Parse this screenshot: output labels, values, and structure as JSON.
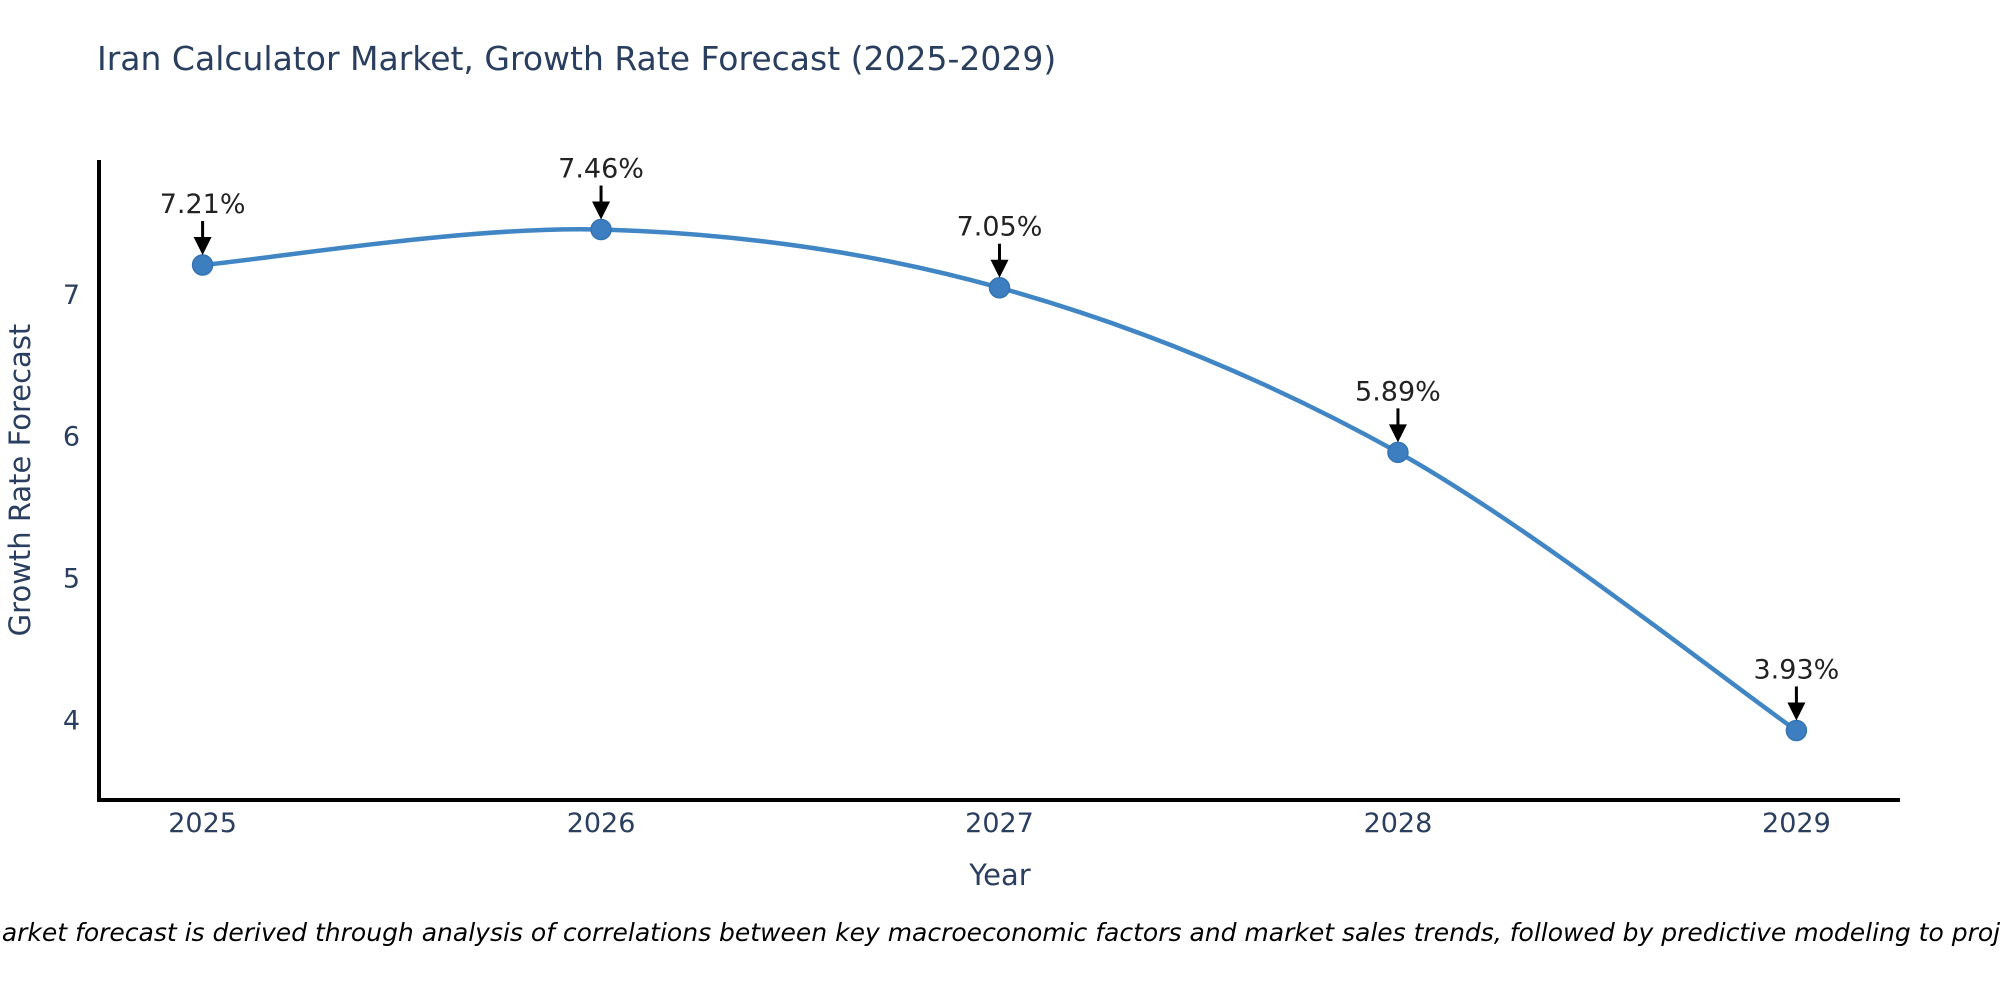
{
  "figure": {
    "title": "Iran Calculator Market, Growth Rate Forecast (2025-2029)",
    "note": "Note: The market forecast is derived through analysis of correlations between key macroeconomic factors and market sales trends, followed by predictive modeling to project future sales."
  },
  "chart_data": {
    "type": "line",
    "title": "Iran Calculator Market, Growth Rate Forecast (2025-2029)",
    "xlabel": "Year",
    "ylabel": "Growth Rate Forecast",
    "x": [
      2025,
      2026,
      2027,
      2028,
      2029
    ],
    "y": [
      7.21,
      7.46,
      7.05,
      5.89,
      3.93
    ],
    "point_labels": [
      "7.21%",
      "7.46%",
      "7.05%",
      "5.89%",
      "3.93%"
    ],
    "xticks": [
      2025,
      2026,
      2027,
      2028,
      2029
    ],
    "yticks": [
      4,
      5,
      6,
      7
    ],
    "xlim": [
      2024.74,
      2029.26
    ],
    "ylim": [
      3.44,
      7.95
    ],
    "line_shape": "spline",
    "grid": false,
    "legend": false,
    "annotation_arrows": true,
    "colors": {
      "line": "#4186c4",
      "marker": "#3c7ebf",
      "marker_edge": "#3474b3",
      "axis": "#000000",
      "text": "#2a3f5f",
      "annotation": "#222222",
      "arrow": "#000000"
    }
  }
}
